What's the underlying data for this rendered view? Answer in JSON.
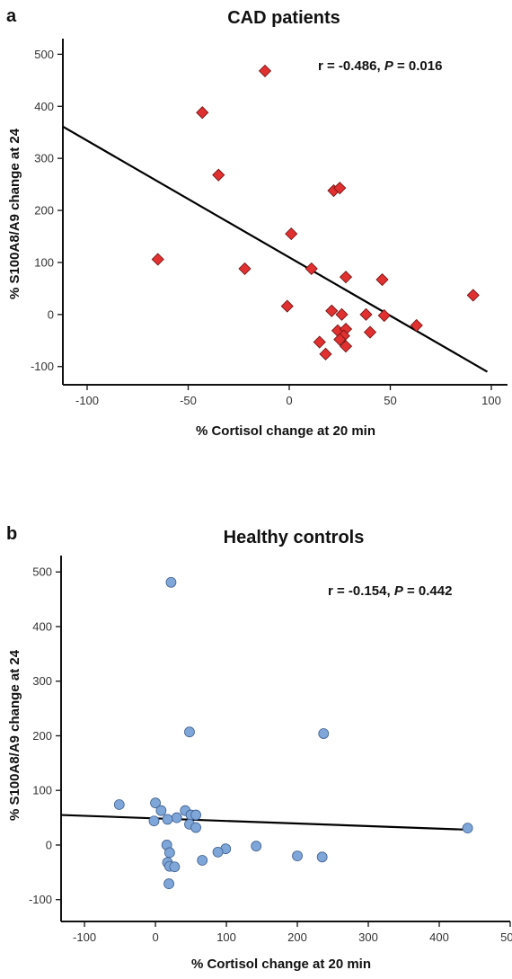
{
  "chart_data": [
    {
      "panel": "a",
      "type": "scatter",
      "title": "CAD patients",
      "xlabel": "% Cortisol change at 20 min",
      "ylabel": "% S100A8/A9 change at 24",
      "xlim": [
        -112,
        108
      ],
      "ylim": [
        -135,
        530
      ],
      "xticks": [
        -100,
        -50,
        0,
        50,
        100
      ],
      "yticks": [
        -100,
        0,
        100,
        200,
        300,
        400,
        500
      ],
      "marker": "diamond",
      "marker_color": "#e03030",
      "stat": {
        "r": "r = -0.486, ",
        "p_label": "P",
        "p": " = 0.016"
      },
      "fit_line": {
        "x": [
          -112,
          98
        ],
        "y": [
          361,
          -110
        ]
      },
      "points": [
        {
          "x": -12,
          "y": 468
        },
        {
          "x": -43,
          "y": 388
        },
        {
          "x": -35,
          "y": 268
        },
        {
          "x": 22,
          "y": 238
        },
        {
          "x": 25,
          "y": 243
        },
        {
          "x": 1,
          "y": 155
        },
        {
          "x": -65,
          "y": 106
        },
        {
          "x": -22,
          "y": 88
        },
        {
          "x": 11,
          "y": 88
        },
        {
          "x": 28,
          "y": 72
        },
        {
          "x": 46,
          "y": 67
        },
        {
          "x": 91,
          "y": 37
        },
        {
          "x": -1,
          "y": 16
        },
        {
          "x": 21,
          "y": 7
        },
        {
          "x": 26,
          "y": 0
        },
        {
          "x": 38,
          "y": 0
        },
        {
          "x": 47,
          "y": -2
        },
        {
          "x": 63,
          "y": -21
        },
        {
          "x": 24,
          "y": -31
        },
        {
          "x": 28,
          "y": -28
        },
        {
          "x": 40,
          "y": -34
        },
        {
          "x": 27,
          "y": -41
        },
        {
          "x": 25,
          "y": -48
        },
        {
          "x": 15,
          "y": -53
        },
        {
          "x": 28,
          "y": -61
        },
        {
          "x": 18,
          "y": -76
        }
      ]
    },
    {
      "panel": "b",
      "type": "scatter",
      "title": "Healthy controls",
      "xlabel": "% Cortisol change at 20 min",
      "ylabel": "% S100A8/A9 change at 24",
      "xlim": [
        -133,
        500
      ],
      "ylim": [
        -140,
        530
      ],
      "xticks": [
        -100,
        0,
        100,
        200,
        300,
        400,
        500
      ],
      "yticks": [
        -100,
        0,
        100,
        200,
        300,
        400,
        500
      ],
      "marker": "circle",
      "marker_color": "#7ea6d8",
      "stat": {
        "r": "r = -0.154, ",
        "p_label": "P",
        "p": " = 0.442"
      },
      "fit_line": {
        "x": [
          -133,
          442
        ],
        "y": [
          55,
          28
        ]
      },
      "points": [
        {
          "x": 22,
          "y": 481
        },
        {
          "x": 48,
          "y": 207
        },
        {
          "x": 237,
          "y": 204
        },
        {
          "x": -51,
          "y": 74
        },
        {
          "x": 0,
          "y": 77
        },
        {
          "x": 8,
          "y": 63
        },
        {
          "x": 42,
          "y": 63
        },
        {
          "x": 30,
          "y": 50
        },
        {
          "x": 17,
          "y": 47
        },
        {
          "x": -2,
          "y": 44
        },
        {
          "x": 50,
          "y": 55
        },
        {
          "x": 57,
          "y": 55
        },
        {
          "x": 48,
          "y": 38
        },
        {
          "x": 57,
          "y": 32
        },
        {
          "x": 440,
          "y": 31
        },
        {
          "x": 16,
          "y": 0
        },
        {
          "x": 142,
          "y": -2
        },
        {
          "x": 99,
          "y": -7
        },
        {
          "x": 88,
          "y": -13
        },
        {
          "x": 20,
          "y": -14
        },
        {
          "x": 200,
          "y": -20
        },
        {
          "x": 235,
          "y": -22
        },
        {
          "x": 66,
          "y": -28
        },
        {
          "x": 17,
          "y": -32
        },
        {
          "x": 20,
          "y": -39
        },
        {
          "x": 27,
          "y": -40
        },
        {
          "x": 19,
          "y": -71
        }
      ]
    }
  ]
}
